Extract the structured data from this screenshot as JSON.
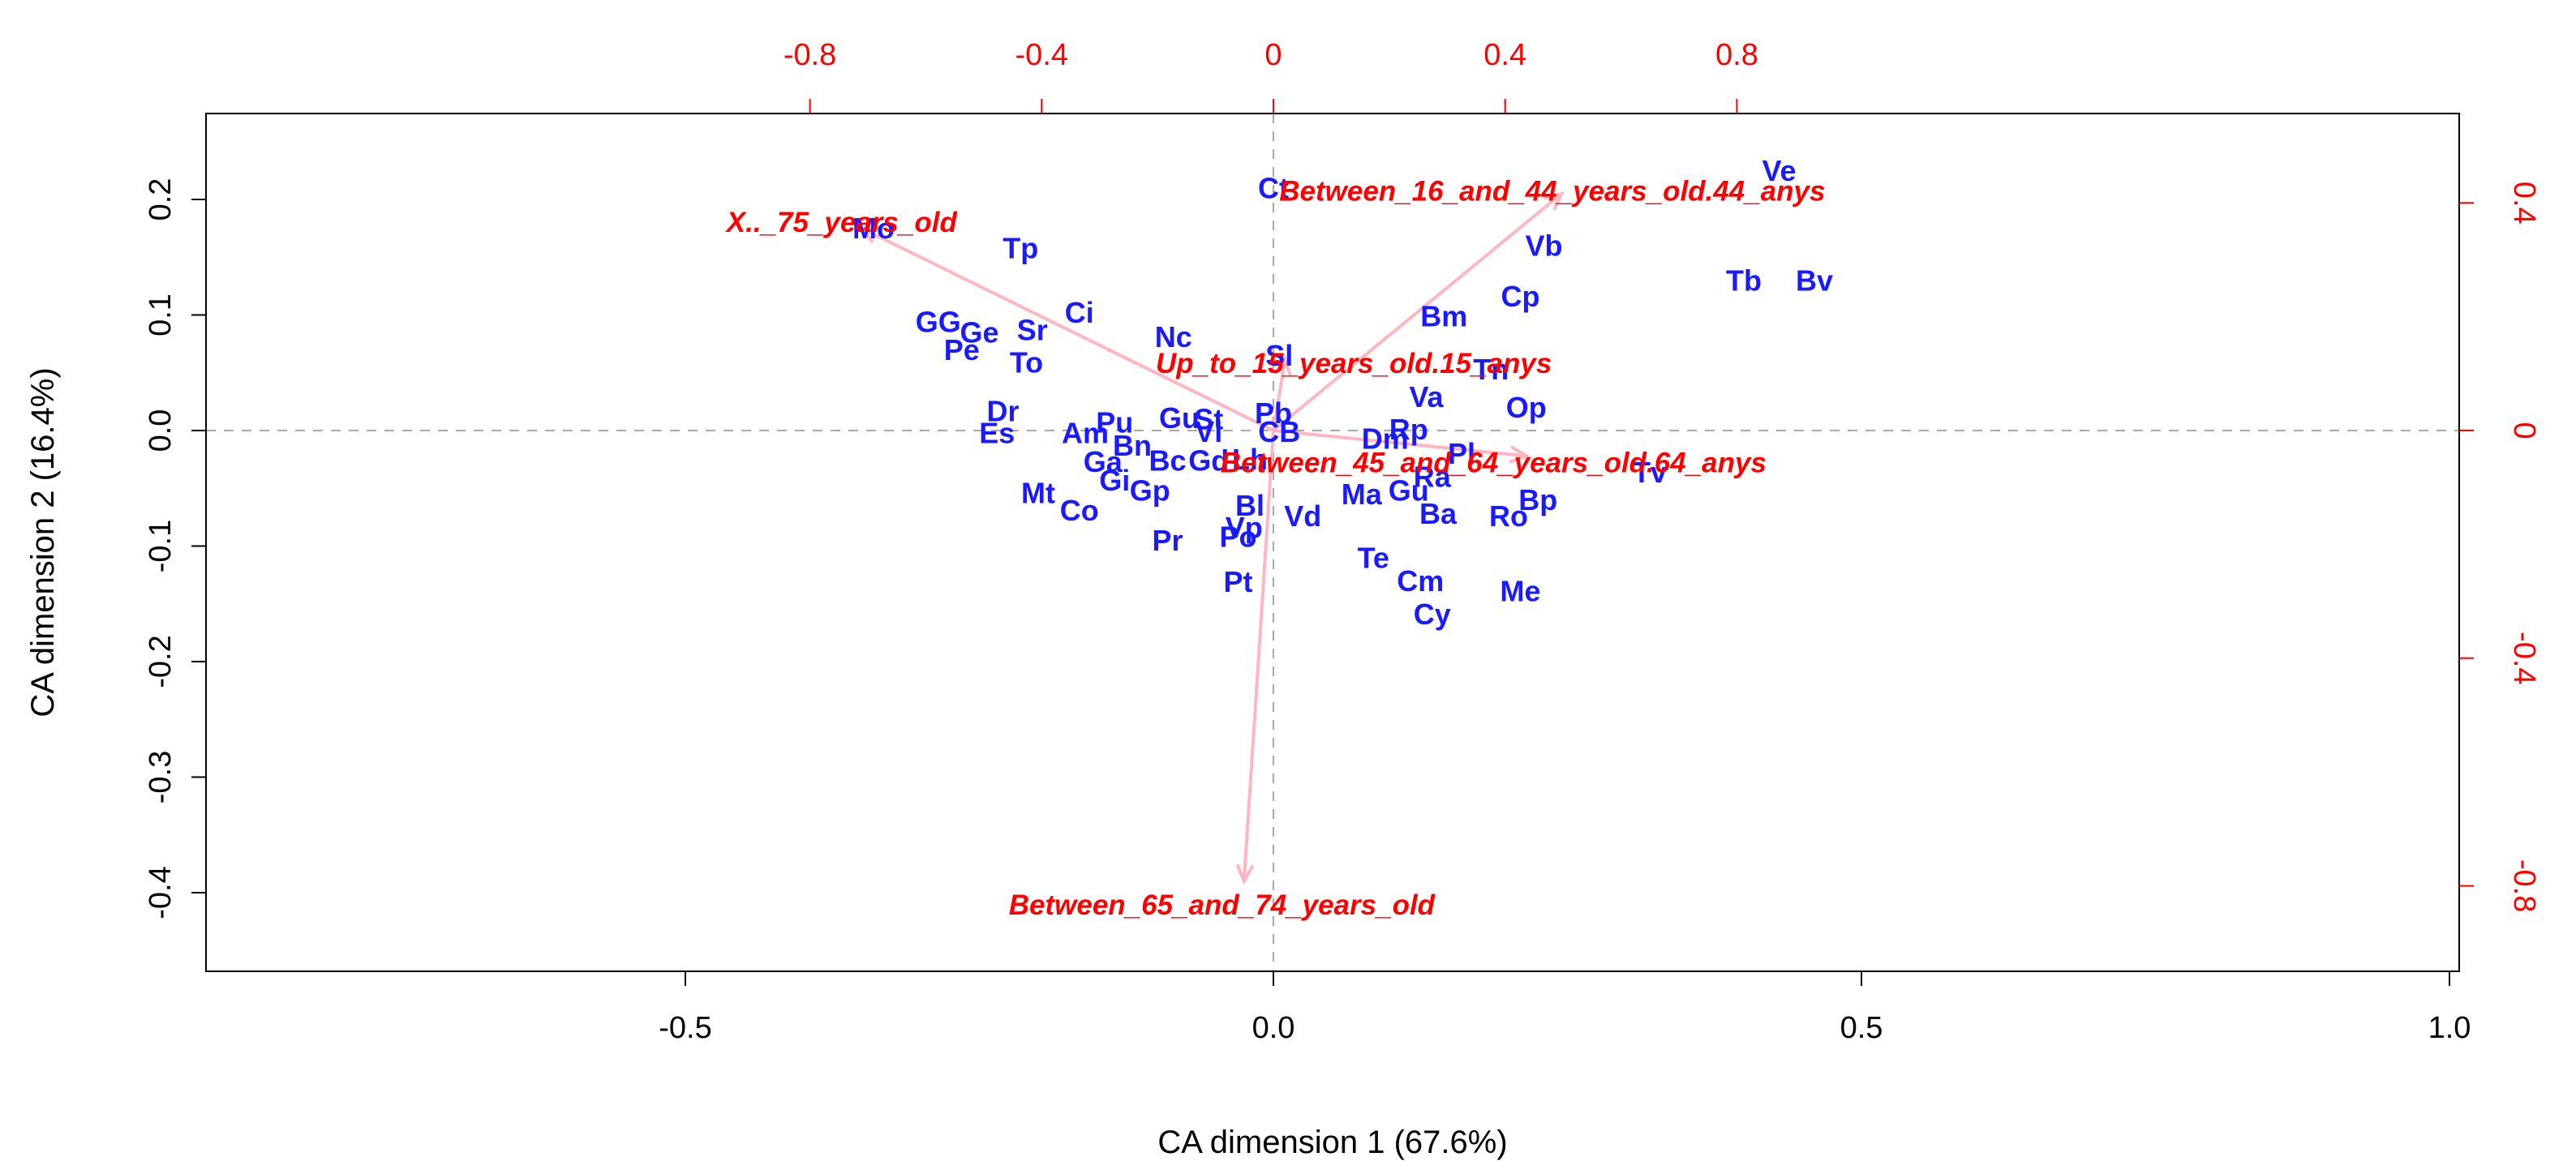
{
  "chart_data": {
    "type": "scatter",
    "subtype": "correspondence-analysis-biplot",
    "xlabel": "CA dimension 1 (67.6%)",
    "ylabel": "CA dimension 2 (16.4%)",
    "xlim": [
      -0.9,
      1.02
    ],
    "ylim": [
      -0.455,
      0.27
    ],
    "x_ticks": [
      -0.5,
      0.0,
      0.5,
      1.0
    ],
    "x_tick_labels": [
      "-0.5",
      "0.0",
      "0.5",
      "1.0"
    ],
    "y_ticks": [
      -0.4,
      -0.3,
      -0.2,
      -0.1,
      0.0,
      0.1,
      0.2
    ],
    "y_tick_labels": [
      "-0.4",
      "-0.3",
      "-0.2",
      "-0.1",
      "0.0",
      "0.1",
      "0.2"
    ],
    "secondary_scale_factor": 2.03,
    "top_ticks": [
      -0.8,
      -0.4,
      0,
      0.4,
      0.8
    ],
    "top_tick_labels": [
      "-0.8",
      "-0.4",
      "0",
      "0.4",
      "0.8"
    ],
    "right_ticks": [
      0.4,
      0,
      -0.4,
      -0.8
    ],
    "right_tick_labels": [
      "0.4",
      "0",
      "-0.4",
      "-0.8"
    ],
    "colors": {
      "rows": "#1a1aff",
      "columns": "#ff0000",
      "arrows": "#ffb6c1",
      "guides": "#a8a8a8",
      "axis": "#000000"
    },
    "row_points": [
      {
        "label": "Ct",
        "x": 0.0,
        "y": 0.21
      },
      {
        "label": "Ve",
        "x": 0.43,
        "y": 0.225
      },
      {
        "label": "Mo",
        "x": -0.34,
        "y": 0.175
      },
      {
        "label": "Tp",
        "x": -0.215,
        "y": 0.158
      },
      {
        "label": "Vb",
        "x": 0.23,
        "y": 0.16
      },
      {
        "label": "Tb",
        "x": 0.4,
        "y": 0.13
      },
      {
        "label": "Bv",
        "x": 0.46,
        "y": 0.13
      },
      {
        "label": "Cp",
        "x": 0.21,
        "y": 0.116
      },
      {
        "label": "Ci",
        "x": -0.165,
        "y": 0.102
      },
      {
        "label": "Bm",
        "x": 0.145,
        "y": 0.099
      },
      {
        "label": "GG",
        "x": -0.285,
        "y": 0.094
      },
      {
        "label": "Ge",
        "x": -0.25,
        "y": 0.085
      },
      {
        "label": "Sr",
        "x": -0.205,
        "y": 0.087
      },
      {
        "label": "Nc",
        "x": -0.085,
        "y": 0.081
      },
      {
        "label": "Pe",
        "x": -0.265,
        "y": 0.07
      },
      {
        "label": "To",
        "x": -0.21,
        "y": 0.059
      },
      {
        "label": "Sl",
        "x": 0.005,
        "y": 0.065
      },
      {
        "label": "Tn",
        "x": 0.185,
        "y": 0.053
      },
      {
        "label": "Va",
        "x": 0.13,
        "y": 0.029
      },
      {
        "label": "Op",
        "x": 0.215,
        "y": 0.02
      },
      {
        "label": "Dr",
        "x": -0.23,
        "y": 0.017
      },
      {
        "label": "Gu",
        "x": -0.08,
        "y": 0.011
      },
      {
        "label": "St",
        "x": -0.055,
        "y": 0.01
      },
      {
        "label": "Pb",
        "x": 0.0,
        "y": 0.015
      },
      {
        "label": "Pu",
        "x": -0.135,
        "y": 0.007
      },
      {
        "label": "Es",
        "x": -0.235,
        "y": -0.002
      },
      {
        "label": "Am",
        "x": -0.16,
        "y": -0.002
      },
      {
        "label": "Vl",
        "x": -0.055,
        "y": -0.001
      },
      {
        "label": "CB",
        "x": 0.005,
        "y": -0.001
      },
      {
        "label": "Rp",
        "x": 0.115,
        "y": 0.001
      },
      {
        "label": "Dm",
        "x": 0.095,
        "y": -0.007
      },
      {
        "label": "Bn",
        "x": -0.12,
        "y": -0.013
      },
      {
        "label": "Pl",
        "x": 0.16,
        "y": -0.02
      },
      {
        "label": "Bc",
        "x": -0.09,
        "y": -0.026
      },
      {
        "label": "Gd",
        "x": -0.055,
        "y": -0.026
      },
      {
        "label": "Ga",
        "x": -0.145,
        "y": -0.027
      },
      {
        "label": "Lh",
        "x": -0.02,
        "y": -0.025
      },
      {
        "label": "Ma",
        "x": 0.075,
        "y": -0.055
      },
      {
        "label": "Gu",
        "x": 0.115,
        "y": -0.052
      },
      {
        "label": "Ra",
        "x": 0.135,
        "y": -0.04
      },
      {
        "label": "Tv",
        "x": 0.32,
        "y": -0.036
      },
      {
        "label": "Bp",
        "x": 0.225,
        "y": -0.06
      },
      {
        "label": "Ro",
        "x": 0.2,
        "y": -0.074
      },
      {
        "label": "Ba",
        "x": 0.14,
        "y": -0.072
      },
      {
        "label": "Gi",
        "x": -0.135,
        "y": -0.043
      },
      {
        "label": "Gp",
        "x": -0.105,
        "y": -0.052
      },
      {
        "label": "Mt",
        "x": -0.2,
        "y": -0.054
      },
      {
        "label": "Co",
        "x": -0.165,
        "y": -0.069
      },
      {
        "label": "Vd",
        "x": 0.025,
        "y": -0.074
      },
      {
        "label": "Bl",
        "x": -0.02,
        "y": -0.065
      },
      {
        "label": "Vp",
        "x": -0.025,
        "y": -0.084
      },
      {
        "label": "Pr",
        "x": -0.09,
        "y": -0.095
      },
      {
        "label": "Po",
        "x": -0.03,
        "y": -0.092
      },
      {
        "label": "Pt",
        "x": -0.03,
        "y": -0.131
      },
      {
        "label": "Te",
        "x": 0.085,
        "y": -0.11
      },
      {
        "label": "Cm",
        "x": 0.125,
        "y": -0.13
      },
      {
        "label": "Me",
        "x": 0.21,
        "y": -0.139
      },
      {
        "label": "Cy",
        "x": 0.135,
        "y": -0.159
      }
    ],
    "column_points": [
      {
        "label": "X.._75_years_old",
        "x": -0.35,
        "y": 0.175,
        "label_x": -0.465,
        "label_y": 0.18
      },
      {
        "label": "Between_16_and_44_years_old.44_anys",
        "x": 0.245,
        "y": 0.205,
        "label_x": 0.005,
        "label_y": 0.207
      },
      {
        "label": "Up_to_15_years_old.15_anys",
        "x": 0.01,
        "y": 0.062,
        "label_x": -0.1,
        "label_y": 0.058
      },
      {
        "label": "Between_45_and_64_years_old.64_anys",
        "x": 0.215,
        "y": -0.022,
        "label_x": -0.045,
        "label_y": -0.028
      },
      {
        "label": "Between_65_and_74_years_old",
        "x": -0.025,
        "y": -0.39,
        "label_x": -0.225,
        "label_y": -0.411
      }
    ]
  }
}
